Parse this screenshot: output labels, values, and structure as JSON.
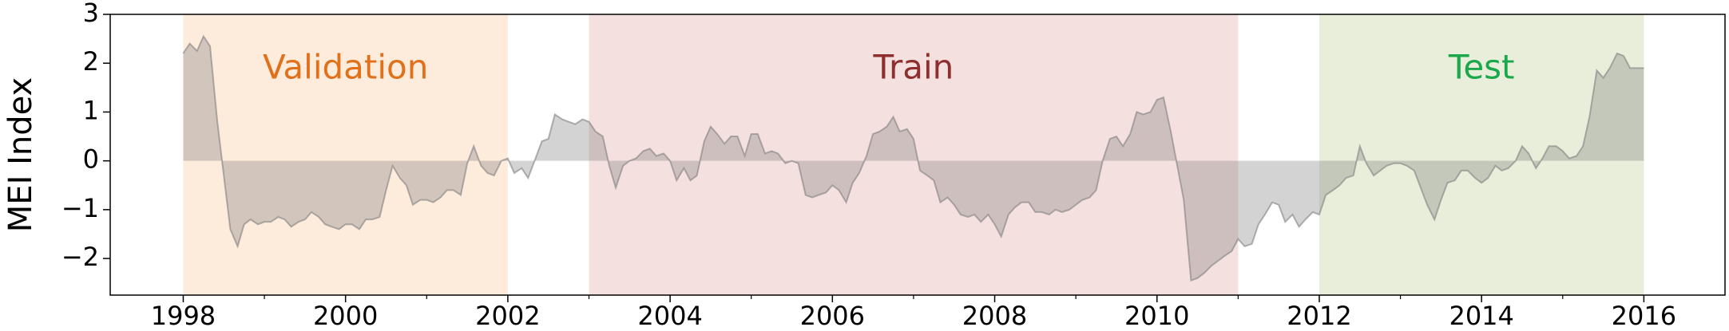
{
  "chart_data": {
    "type": "area",
    "y_label": "MEI Index",
    "xlim": [
      1997.1,
      2017.0
    ],
    "ylim": [
      -2.75,
      3
    ],
    "xticks": [
      1998,
      2000,
      2002,
      2004,
      2006,
      2008,
      2010,
      2012,
      2014,
      2016
    ],
    "xminorticks": [
      1999,
      2001,
      2003,
      2005,
      2007,
      2009,
      2011,
      2013,
      2015
    ],
    "yticks": [
      3,
      2,
      1,
      0,
      {
        "value": -1,
        "label": "−1"
      },
      {
        "value": -2,
        "label": "−2"
      }
    ],
    "color": "#808080",
    "regions": [
      {
        "name": "Validation",
        "start": 1998,
        "end": 2002,
        "color": "#fdebdc",
        "label_color": "#e0711a"
      },
      {
        "name": "Train",
        "start": 2003,
        "end": 2011,
        "color": "#f4e0df",
        "label_color": "#8e2e2e"
      },
      {
        "name": "Test",
        "start": 2012,
        "end": 2016,
        "color": "#e8eed9",
        "label_color": "#1aa84a"
      }
    ],
    "x": [
      1998,
      1998.08,
      1998.17,
      1998.25,
      1998.33,
      1998.42,
      1998.5,
      1998.58,
      1998.67,
      1998.75,
      1998.83,
      1998.92,
      1999,
      1999.08,
      1999.17,
      1999.25,
      1999.33,
      1999.42,
      1999.5,
      1999.58,
      1999.67,
      1999.75,
      1999.83,
      1999.92,
      2000,
      2000.08,
      2000.17,
      2000.25,
      2000.33,
      2000.42,
      2000.5,
      2000.58,
      2000.67,
      2000.75,
      2000.83,
      2000.92,
      2001,
      2001.08,
      2001.17,
      2001.25,
      2001.33,
      2001.42,
      2001.5,
      2001.58,
      2001.67,
      2001.75,
      2001.83,
      2001.92,
      2002,
      2002.08,
      2002.17,
      2002.25,
      2002.33,
      2002.42,
      2002.5,
      2002.58,
      2002.67,
      2002.75,
      2002.83,
      2002.92,
      2003,
      2003.08,
      2003.17,
      2003.25,
      2003.33,
      2003.42,
      2003.5,
      2003.58,
      2003.67,
      2003.75,
      2003.83,
      2003.92,
      2004,
      2004.08,
      2004.17,
      2004.25,
      2004.33,
      2004.42,
      2004.5,
      2004.58,
      2004.67,
      2004.75,
      2004.83,
      2004.92,
      2005,
      2005.08,
      2005.17,
      2005.25,
      2005.33,
      2005.42,
      2005.5,
      2005.58,
      2005.67,
      2005.75,
      2005.83,
      2005.92,
      2006,
      2006.08,
      2006.17,
      2006.25,
      2006.33,
      2006.42,
      2006.5,
      2006.58,
      2006.67,
      2006.75,
      2006.83,
      2006.92,
      2007,
      2007.08,
      2007.17,
      2007.25,
      2007.33,
      2007.42,
      2007.5,
      2007.58,
      2007.67,
      2007.75,
      2007.83,
      2007.92,
      2008,
      2008.08,
      2008.17,
      2008.25,
      2008.33,
      2008.42,
      2008.5,
      2008.58,
      2008.67,
      2008.75,
      2008.83,
      2008.92,
      2009,
      2009.08,
      2009.17,
      2009.25,
      2009.33,
      2009.42,
      2009.5,
      2009.58,
      2009.67,
      2009.75,
      2009.83,
      2009.92,
      2010,
      2010.08,
      2010.17,
      2010.25,
      2010.33,
      2010.42,
      2010.5,
      2010.58,
      2010.67,
      2010.75,
      2010.83,
      2010.92,
      2011,
      2011.08,
      2011.17,
      2011.25,
      2011.33,
      2011.42,
      2011.5,
      2011.58,
      2011.67,
      2011.75,
      2011.83,
      2011.92,
      2012,
      2012.08,
      2012.17,
      2012.25,
      2012.33,
      2012.42,
      2012.5,
      2012.58,
      2012.67,
      2012.75,
      2012.83,
      2012.92,
      2013,
      2013.08,
      2013.17,
      2013.25,
      2013.33,
      2013.42,
      2013.5,
      2013.58,
      2013.67,
      2013.75,
      2013.83,
      2013.92,
      2014,
      2014.08,
      2014.17,
      2014.25,
      2014.33,
      2014.42,
      2014.5,
      2014.58,
      2014.67,
      2014.75,
      2014.83,
      2014.92,
      2015,
      2015.08,
      2015.17,
      2015.25,
      2015.33,
      2015.42,
      2015.5,
      2015.58,
      2015.67,
      2015.75,
      2015.83,
      2015.92,
      2016
    ],
    "values": [
      2.2,
      2.4,
      2.25,
      2.55,
      2.35,
      0.8,
      -0.3,
      -1.4,
      -1.75,
      -1.3,
      -1.2,
      -1.3,
      -1.25,
      -1.25,
      -1.15,
      -1.2,
      -1.35,
      -1.25,
      -1.2,
      -1.05,
      -1.15,
      -1.3,
      -1.35,
      -1.4,
      -1.3,
      -1.3,
      -1.4,
      -1.2,
      -1.2,
      -1.15,
      -0.6,
      -0.1,
      -0.35,
      -0.5,
      -0.9,
      -0.8,
      -0.8,
      -0.85,
      -0.75,
      -0.6,
      -0.6,
      -0.7,
      -0.05,
      0.3,
      -0.1,
      -0.25,
      -0.3,
      0.0,
      0.05,
      -0.25,
      -0.15,
      -0.35,
      0.0,
      0.4,
      0.45,
      0.95,
      0.85,
      0.8,
      0.75,
      0.85,
      0.8,
      0.6,
      0.5,
      -0.1,
      -0.55,
      -0.1,
      0.0,
      0.05,
      0.2,
      0.25,
      0.1,
      0.15,
      0.0,
      -0.4,
      -0.15,
      -0.4,
      -0.3,
      0.4,
      0.7,
      0.55,
      0.35,
      0.5,
      0.5,
      0.1,
      0.55,
      0.55,
      0.15,
      0.2,
      0.15,
      -0.05,
      0.0,
      -0.05,
      -0.7,
      -0.75,
      -0.7,
      -0.65,
      -0.5,
      -0.6,
      -0.85,
      -0.45,
      -0.25,
      0.1,
      0.55,
      0.6,
      0.7,
      0.9,
      0.6,
      0.65,
      0.45,
      -0.2,
      -0.3,
      -0.4,
      -0.85,
      -0.75,
      -0.9,
      -1.1,
      -1.15,
      -1.1,
      -1.25,
      -1.1,
      -1.3,
      -1.55,
      -1.1,
      -0.95,
      -0.85,
      -0.85,
      -1.05,
      -1.05,
      -1.1,
      -1.0,
      -1.05,
      -1.0,
      -0.9,
      -0.8,
      -0.75,
      -0.6,
      0.0,
      0.45,
      0.5,
      0.3,
      0.55,
      1.0,
      0.95,
      1.0,
      1.25,
      1.3,
      0.6,
      -0.1,
      -0.8,
      -2.45,
      -2.4,
      -2.3,
      -2.15,
      -2.05,
      -1.95,
      -1.85,
      -1.6,
      -1.75,
      -1.7,
      -1.3,
      -1.1,
      -0.85,
      -0.9,
      -1.25,
      -1.1,
      -1.35,
      -1.2,
      -1.05,
      -1.1,
      -0.7,
      -0.6,
      -0.5,
      -0.35,
      -0.3,
      0.3,
      -0.05,
      -0.3,
      -0.2,
      -0.1,
      -0.05,
      -0.05,
      -0.1,
      -0.2,
      -0.55,
      -0.9,
      -1.2,
      -0.8,
      -0.45,
      -0.4,
      -0.2,
      -0.2,
      -0.35,
      -0.45,
      -0.35,
      -0.1,
      -0.2,
      -0.15,
      0.0,
      0.3,
      0.15,
      -0.15,
      0.05,
      0.3,
      0.3,
      0.2,
      0.05,
      0.1,
      0.3,
      0.9,
      1.85,
      1.7,
      1.9,
      2.2,
      2.15,
      1.9,
      1.9,
      1.9
    ]
  }
}
